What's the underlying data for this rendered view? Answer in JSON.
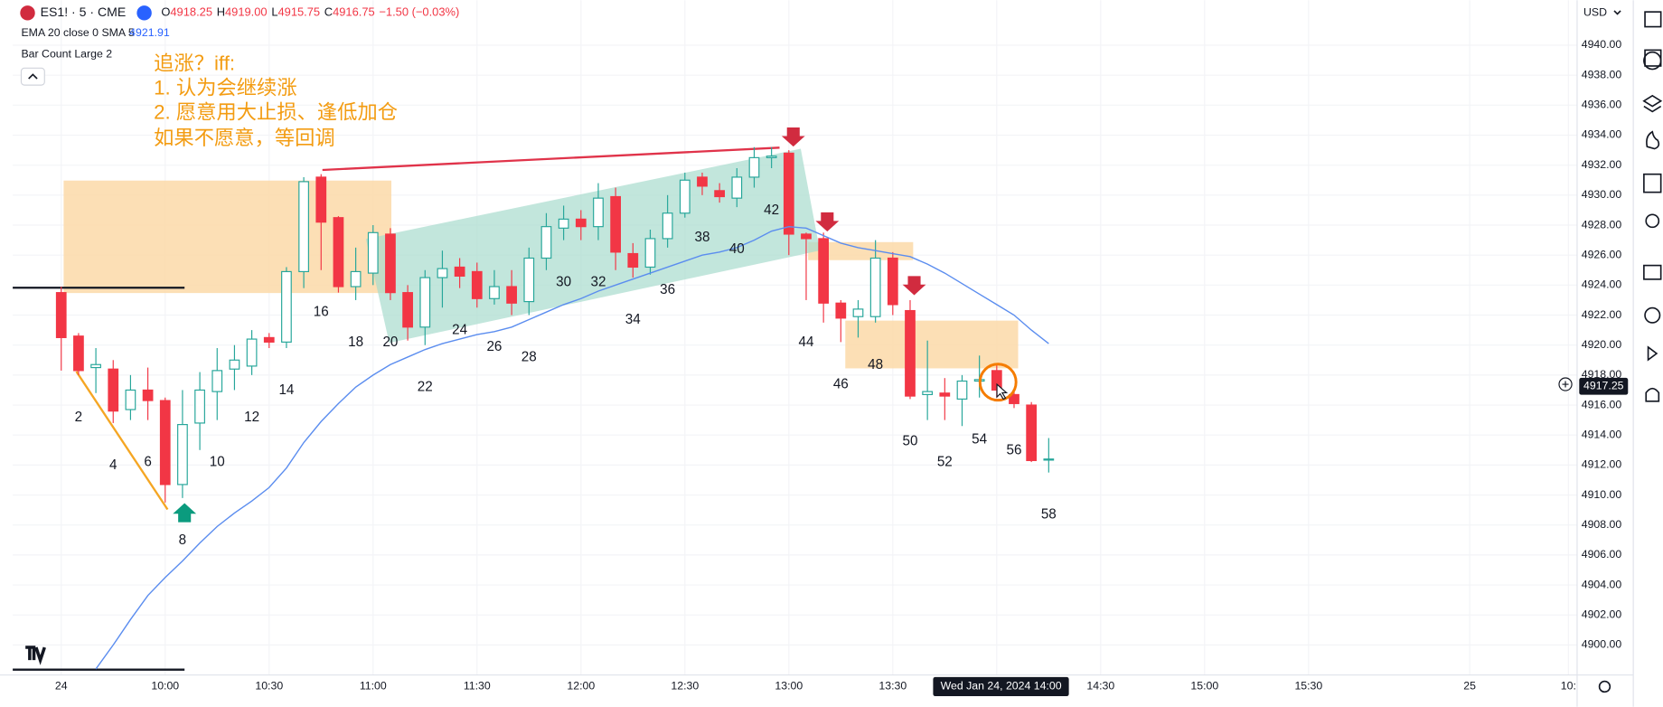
{
  "chart_data": {
    "type": "candlestick",
    "header": {
      "symbol": "ES1! · 5 · CME",
      "open_label": "O",
      "open": "4918.25",
      "high_label": "H",
      "high": "4919.00",
      "low_label": "L",
      "low": "4915.75",
      "close_label": "C",
      "close": "4916.75",
      "change": "−1.50 (−0.03%)"
    },
    "indicator": {
      "name": "EMA 20 close 0 SMA 5",
      "value_label": "4921.91",
      "color": "#5b8def",
      "values": [
        null,
        null,
        4898.4,
        4900.0,
        4901.7,
        4903.3,
        4904.5,
        4905.6,
        4906.8,
        4907.9,
        4908.8,
        4909.6,
        4910.5,
        4911.8,
        4913.5,
        4914.9,
        4916.1,
        4917.2,
        4918.0,
        4918.7,
        4919.2,
        4919.7,
        4920.1,
        4920.4,
        4920.7,
        4920.9,
        4921.2,
        4921.7,
        4922.2,
        4922.7,
        4923.1,
        4923.6,
        4924.0,
        4924.4,
        4924.8,
        4925.2,
        4925.6,
        4926.0,
        4926.2,
        4926.5,
        4927.0,
        4927.6,
        4927.9,
        4927.8,
        4927.3,
        4926.8,
        4926.5,
        4926.3,
        4926.1,
        4925.9,
        4925.4,
        4924.8,
        4924.1,
        4923.4,
        4922.7,
        4922.0,
        4921.0,
        4920.1
      ]
    },
    "bar_count_title": "Bar Count Large 2",
    "bar_counts": [
      2,
      4,
      6,
      8,
      10,
      12,
      14,
      16,
      18,
      20,
      22,
      24,
      26,
      28,
      30,
      32,
      34,
      36,
      38,
      40,
      42,
      44,
      46,
      48,
      50,
      52,
      54,
      56,
      58
    ],
    "annotation": [
      "追涨？iff:",
      "1. 认为会继续涨",
      "2. 愿意用大止损、逢低加仓",
      "如果不愿意，等回调"
    ],
    "currency": "USD",
    "crosshair_date": "Wed Jan 24, 2024",
    "last_price": 4917.25,
    "up_color": "#26a69a",
    "down_color": "#f23645",
    "x": [
      1,
      2,
      3,
      4,
      5,
      6,
      7,
      8,
      9,
      10,
      11,
      12,
      13,
      14,
      15,
      16,
      17,
      18,
      19,
      20,
      21,
      22,
      23,
      24,
      25,
      26,
      27,
      28,
      29,
      30,
      31,
      32,
      33,
      34,
      35,
      36,
      37,
      38,
      39,
      40,
      41,
      42,
      43,
      44,
      45,
      46,
      47,
      48,
      49,
      50,
      51,
      52,
      53,
      54,
      55,
      56,
      57,
      58
    ],
    "open": [
      4923.5,
      4920.6,
      4918.5,
      4918.4,
      4915.7,
      4917,
      4916.3,
      4910.7,
      4914.8,
      4916.9,
      4918.4,
      4918.6,
      4920.5,
      4920.2,
      4924.9,
      4931.2,
      4928.5,
      4923.9,
      4924.8,
      4927.4,
      4923.5,
      4921.2,
      4924.5,
      4925.2,
      4924.9,
      4923.1,
      4923.9,
      4922.9,
      4925.8,
      4927.8,
      4928.4,
      4927.9,
      4929.9,
      4926.1,
      4925.2,
      4927.1,
      4928.8,
      4931.2,
      4930.3,
      4929.8,
      4931.2,
      4932.5,
      4932.8,
      4927.4,
      4927.1,
      4922.8,
      4921.9,
      4921.9,
      4925.8,
      4922.3,
      4916.7,
      4916.8,
      4916.4,
      4917.6,
      4918.3,
      4916.7,
      4916,
      4912.4
    ],
    "high": [
      4923.9,
      4920.8,
      4919.8,
      4919,
      4918,
      4918.5,
      4916.5,
      4917,
      4918.2,
      4919.8,
      4920,
      4921,
      4920.8,
      4925.2,
      4931.2,
      4931.4,
      4928.6,
      4926.5,
      4928,
      4927.8,
      4924,
      4925,
      4926.3,
      4925.8,
      4925.5,
      4925,
      4925,
      4926.5,
      4928.8,
      4929.3,
      4929,
      4930.8,
      4930.5,
      4926.8,
      4927.7,
      4930,
      4931.5,
      4931.5,
      4930.8,
      4931.8,
      4933.2,
      4933.2,
      4933,
      4927.5,
      4927.5,
      4923,
      4923,
      4927,
      4926.2,
      4923,
      4920.3,
      4917.8,
      4918,
      4919.3,
      4918.8,
      4917,
      4916.2,
      4913.8
    ],
    "low": [
      4918.3,
      4918,
      4916.8,
      4914.8,
      4915,
      4915,
      4909.5,
      4909.8,
      4913,
      4915,
      4917,
      4918,
      4919.8,
      4919.8,
      4923.8,
      4925,
      4923.5,
      4923,
      4924,
      4923,
      4920.3,
      4920,
      4922.5,
      4923.8,
      4922.5,
      4922.7,
      4922,
      4922,
      4925,
      4927,
      4927,
      4927,
      4925,
      4924.5,
      4924.7,
      4926.5,
      4928.5,
      4930,
      4929.5,
      4929.2,
      4930.5,
      4931.8,
      4926,
      4923,
      4921.5,
      4920.2,
      4920.5,
      4921.5,
      4922,
      4916.4,
      4915,
      4915,
      4914.6,
      4916.5,
      4916.5,
      4915.8,
      4912.2,
      4911.5
    ],
    "close": [
      4920.5,
      4918.3,
      4918.7,
      4915.6,
      4917,
      4916.3,
      4910.7,
      4914.7,
      4917,
      4918.3,
      4919,
      4920.4,
      4920.2,
      4924.9,
      4930.9,
      4928.2,
      4923.9,
      4924.9,
      4927.5,
      4923.5,
      4921.2,
      4924.5,
      4925.1,
      4924.6,
      4923.1,
      4923.9,
      4922.8,
      4925.8,
      4927.9,
      4928.4,
      4927.9,
      4929.8,
      4926.2,
      4925.2,
      4927.1,
      4928.8,
      4931,
      4930.6,
      4929.9,
      4931.2,
      4932.5,
      4932.6,
      4927.4,
      4927.1,
      4922.8,
      4921.8,
      4922.4,
      4925.8,
      4922.7,
      4916.6,
      4916.9,
      4916.6,
      4917.6,
      4917.7,
      4917,
      4916.1,
      4912.3,
      4912.4
    ],
    "xlim": [
      -1.8,
      88.5
    ],
    "xticks": [
      {
        "value": 1,
        "label": "24"
      },
      {
        "value": 7,
        "label": "10:00"
      },
      {
        "value": 13,
        "label": "10:30"
      },
      {
        "value": 19,
        "label": "11:00"
      },
      {
        "value": 25,
        "label": "11:30"
      },
      {
        "value": 31,
        "label": "12:00"
      },
      {
        "value": 37,
        "label": "12:30"
      },
      {
        "value": 43,
        "label": "13:00"
      },
      {
        "value": 49,
        "label": "13:30"
      },
      {
        "value": 55,
        "label": "14:00"
      },
      {
        "value": 61,
        "label": "14:30"
      },
      {
        "value": 67,
        "label": "15:00"
      },
      {
        "value": 73,
        "label": "15:30"
      },
      {
        "value": 82.3,
        "label": "25"
      },
      {
        "value": 88,
        "label": "10:"
      }
    ],
    "ylim": [
      4898,
      4943
    ],
    "yticks": [
      {
        "value": 4900,
        "label": "4900.00"
      },
      {
        "value": 4902,
        "label": "4902.00"
      },
      {
        "value": 4904,
        "label": "4904.00"
      },
      {
        "value": 4906,
        "label": "4906.00"
      },
      {
        "value": 4908,
        "label": "4908.00"
      },
      {
        "value": 4910,
        "label": "4910.00"
      },
      {
        "value": 4912,
        "label": "4912.00"
      },
      {
        "value": 4914,
        "label": "4914.00"
      },
      {
        "value": 4916,
        "label": "4916.00"
      },
      {
        "value": 4918,
        "label": "4918.00"
      },
      {
        "value": 4920,
        "label": "4920.00"
      },
      {
        "value": 4922,
        "label": "4922.00"
      },
      {
        "value": 4924,
        "label": "4924.00"
      },
      {
        "value": 4926,
        "label": "4926.00"
      },
      {
        "value": 4928,
        "label": "4928.00"
      },
      {
        "value": 4930,
        "label": "4930.00"
      },
      {
        "value": 4932,
        "label": "4932.00"
      },
      {
        "value": 4934,
        "label": "4934.00"
      },
      {
        "value": 4936,
        "label": "4936.00"
      },
      {
        "value": 4938,
        "label": "4938.00"
      },
      {
        "value": 4940,
        "label": "4940.00"
      }
    ],
    "grid": true
  }
}
